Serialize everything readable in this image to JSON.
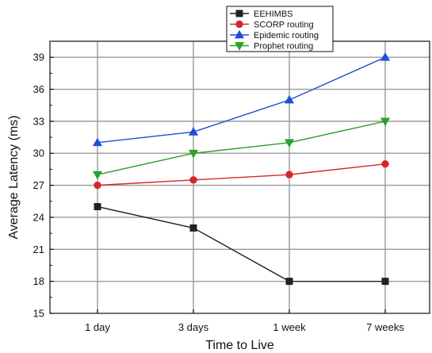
{
  "chart_data": {
    "type": "line",
    "title": "",
    "xlabel": "Time to Live",
    "ylabel": "Average Latency (ms)",
    "categories": [
      "1 day",
      "3 days",
      "1 week",
      "7 weeks"
    ],
    "ylim": [
      15,
      40.5
    ],
    "yticks": [
      15,
      18,
      21,
      24,
      27,
      30,
      33,
      36,
      39
    ],
    "grid": true,
    "legend_position": "top-right",
    "series": [
      {
        "name": "EEHIMBS",
        "values": [
          25,
          23,
          18,
          18
        ],
        "color": "#222222",
        "marker": "square"
      },
      {
        "name": "SCORP routing",
        "values": [
          27,
          27.5,
          28,
          29
        ],
        "color": "#d62728",
        "marker": "circle"
      },
      {
        "name": "Epidemic routing",
        "values": [
          31,
          32,
          35,
          39
        ],
        "color": "#1f4fd8",
        "marker": "triangle-up"
      },
      {
        "name": "Prophet routing",
        "values": [
          28,
          30,
          31,
          33
        ],
        "color": "#2ca02c",
        "marker": "triangle-down"
      }
    ]
  }
}
